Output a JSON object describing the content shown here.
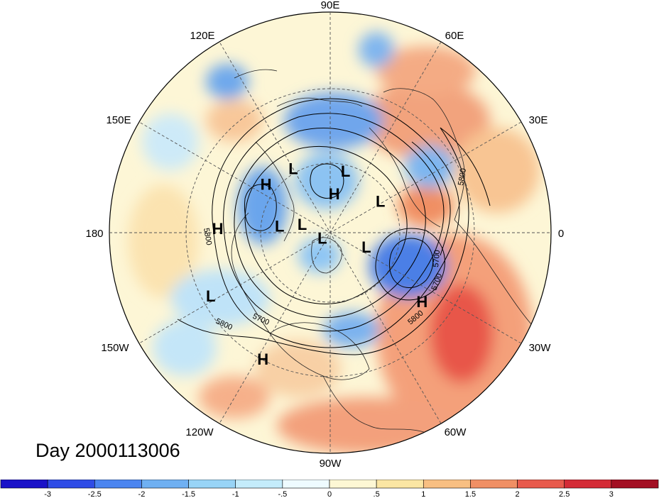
{
  "title": "Day 2000113006",
  "longitude_labels": [
    "90E",
    "60E",
    "30E",
    "0",
    "30W",
    "60W",
    "90W",
    "120W",
    "150W",
    "180",
    "150E",
    "120E"
  ],
  "contour_labels": [
    "5800",
    "5800",
    "5700",
    "5800",
    "5700",
    "5800",
    "5700"
  ],
  "pressure_centers": [
    {
      "text": "L",
      "lat": 58,
      "lon": 76
    },
    {
      "text": "H",
      "lat": 70,
      "lon": 84
    },
    {
      "text": "L",
      "lat": 53,
      "lon": 120
    },
    {
      "text": "H",
      "lat": 50,
      "lon": 143
    },
    {
      "text": "L",
      "lat": 60,
      "lon": 32
    },
    {
      "text": "L",
      "lat": 75,
      "lon": 164
    },
    {
      "text": "L",
      "lat": 64,
      "lon": 173
    },
    {
      "text": "H",
      "lat": 36,
      "lon": 178
    },
    {
      "text": "L",
      "lat": 85,
      "lon": 215
    },
    {
      "text": "L",
      "lat": 70,
      "lon": 338
    },
    {
      "text": "H",
      "lat": 35,
      "lon": 323
    },
    {
      "text": "L",
      "lat": 27,
      "lon": 208
    },
    {
      "text": "H",
      "lat": 24,
      "lon": 242
    }
  ],
  "colorbar": {
    "labels": [
      "-3",
      "-2.5",
      "-2",
      "-1.5",
      "-1",
      "-.5",
      "0",
      ".5",
      "1",
      "1.5",
      "2",
      "2.5",
      "3"
    ],
    "colors": [
      "#1a12c8",
      "#2f4ce6",
      "#4b85f0",
      "#6fb0f2",
      "#98d4f6",
      "#c4ecfb",
      "#eefbff",
      "#fdf7d4",
      "#fbe6a3",
      "#f8bf82",
      "#f08f64",
      "#e85a4c",
      "#d42b36",
      "#a30f23"
    ]
  }
}
